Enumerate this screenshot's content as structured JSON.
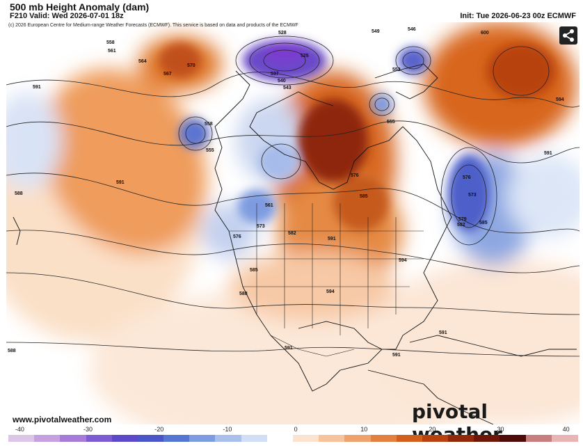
{
  "header": {
    "title": "500 mb Height Anomaly (dam)",
    "valid": "F210 Valid: Wed 2026-07-01 18z",
    "init": "Init: Tue 2026-06-23 00z ECMWF"
  },
  "copyright": "(c) 2026 European Centre for Medium-range Weather Forecasts (ECMWF). This service is based on data and products of the ECMWF",
  "footer": {
    "website": "www.pivotalweather.com",
    "brand": "pivotal weather"
  },
  "share_icon": "share-icon",
  "contour_labels": [
    "528",
    "546",
    "549",
    "558",
    "561",
    "564",
    "567",
    "570",
    "573",
    "576",
    "579",
    "582",
    "585",
    "588",
    "591",
    "594",
    "600",
    "525",
    "537",
    "540",
    "543",
    "552",
    "555"
  ],
  "colorbar": {
    "ticks": [
      "-40",
      "-30",
      "-20",
      "-10",
      "0",
      "10",
      "20",
      "30",
      "40"
    ],
    "colors": [
      "#dcc6e8",
      "#c6a0e0",
      "#a77bd8",
      "#7d5bd3",
      "#5b49c9",
      "#4a55c8",
      "#5577d2",
      "#7d9de0",
      "#a9c0ec",
      "#d2def5",
      "#ffffff",
      "#fbe3cf",
      "#f6c39c",
      "#efa26c",
      "#e4803f",
      "#d35f1c",
      "#b8420f",
      "#92280a",
      "#6e1608",
      "#4e0a06",
      "#c87e7e",
      "#e8b4b4"
    ]
  }
}
